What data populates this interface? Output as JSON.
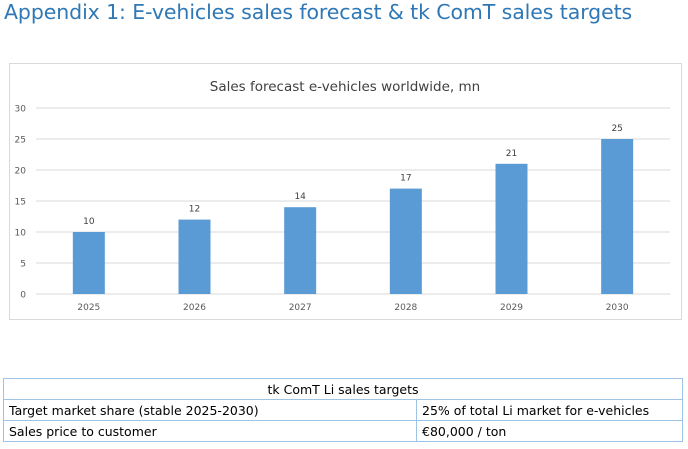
{
  "page": {
    "title": "Appendix 1: E-vehicles sales forecast & tk ComT sales targets"
  },
  "colors": {
    "title": "#2f78b5",
    "bar": "#5b9bd5",
    "grid": "#d9d9d9",
    "table_border": "#9dc3e6"
  },
  "chart_data": {
    "type": "bar",
    "title": "Sales forecast e-vehicles worldwide, mn",
    "categories": [
      "2025",
      "2026",
      "2027",
      "2028",
      "2029",
      "2030"
    ],
    "values": [
      10,
      12,
      14,
      17,
      21,
      25
    ],
    "value_labels": [
      "10",
      "12",
      "14",
      "17",
      "21",
      "25"
    ],
    "xlabel": "",
    "ylabel": "",
    "ylim": [
      0,
      30
    ],
    "yticks": [
      "0",
      "5",
      "10",
      "15",
      "20",
      "25",
      "30"
    ],
    "grid": true,
    "legend": "none"
  },
  "targets_table": {
    "header": "tk ComT Li sales targets",
    "rows": [
      {
        "label": "Target market share (stable 2025-2030)",
        "value": "25% of total Li market for e-vehicles"
      },
      {
        "label": "Sales price to customer",
        "value": "€80,000 / ton"
      }
    ]
  }
}
